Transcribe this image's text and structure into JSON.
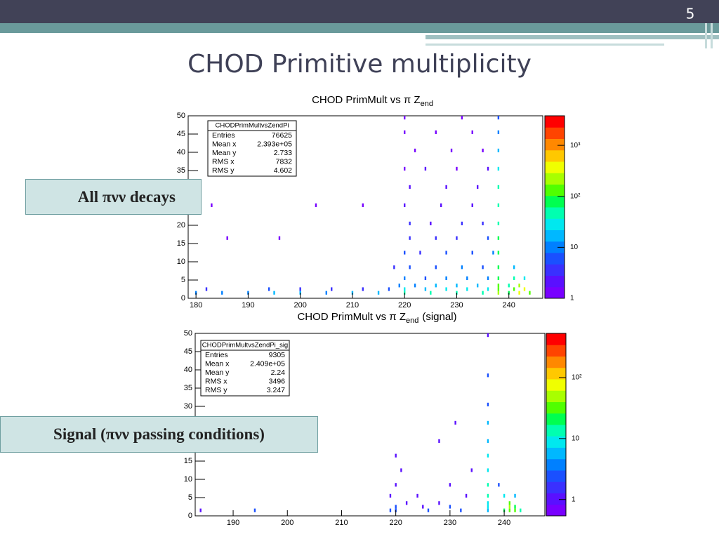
{
  "slide": {
    "number": "5",
    "title": "CHOD Primitive multiplicity"
  },
  "callouts": [
    "All πνν decays",
    "Signal (πνν passing conditions)"
  ],
  "chart_data": [
    {
      "type": "heatmap",
      "title": "CHOD PrimMult vs π Z",
      "title_subscript": "end",
      "xlim": [
        178.5,
        246.5
      ],
      "xticks": [
        180,
        190,
        200,
        210,
        220,
        230,
        240
      ],
      "ylim": [
        0,
        50
      ],
      "yticks": [
        0,
        5,
        10,
        15,
        20,
        25,
        30,
        35,
        40,
        45,
        50
      ],
      "zlim": [
        1,
        3800
      ],
      "zlog": true,
      "zticks": [
        1,
        10,
        {
          "value": 100,
          "label": "10²"
        },
        {
          "value": 1000,
          "label": "10³"
        }
      ],
      "stats": {
        "name": "CHODPrimMultvsZendPi",
        "rows": [
          {
            "label": "Entries",
            "value": 76625
          },
          {
            "label": "Mean x",
            "value": {
              "value": 239300,
              "label": "2.393e+05"
            }
          },
          {
            "label": "Mean y",
            "value": 2.733
          },
          {
            "label": "RMS x",
            "value": 7832
          },
          {
            "label": "RMS y",
            "value": 4.602
          }
        ]
      },
      "cells": [
        [
          180,
          1,
          8
        ],
        [
          185,
          1,
          10
        ],
        [
          190,
          1,
          12
        ],
        [
          195,
          1,
          15
        ],
        [
          200,
          1,
          14
        ],
        [
          205,
          1,
          12
        ],
        [
          210,
          1,
          15
        ],
        [
          215,
          1,
          20
        ],
        [
          220,
          1,
          60
        ],
        [
          225,
          1,
          40
        ],
        [
          230,
          1,
          45
        ],
        [
          235,
          1,
          50
        ],
        [
          238,
          1,
          200
        ],
        [
          240,
          1,
          80
        ],
        [
          242,
          1,
          300
        ],
        [
          244,
          1,
          150
        ],
        [
          182,
          2,
          3
        ],
        [
          194,
          2,
          5
        ],
        [
          200,
          2,
          4
        ],
        [
          206,
          2,
          3
        ],
        [
          212,
          2,
          4
        ],
        [
          217,
          2,
          6
        ],
        [
          220,
          2,
          30
        ],
        [
          224,
          2,
          20
        ],
        [
          228,
          2,
          25
        ],
        [
          232,
          2,
          22
        ],
        [
          236,
          2,
          30
        ],
        [
          238,
          2,
          150
        ],
        [
          241,
          2,
          120
        ],
        [
          243,
          2,
          400
        ],
        [
          219,
          3,
          10
        ],
        [
          222,
          3,
          12
        ],
        [
          226,
          3,
          15
        ],
        [
          230,
          3,
          14
        ],
        [
          234,
          3,
          18
        ],
        [
          238,
          3,
          120
        ],
        [
          240,
          3,
          60
        ],
        [
          242,
          3,
          200
        ],
        [
          220,
          5,
          8
        ],
        [
          224,
          5,
          6
        ],
        [
          228,
          5,
          10
        ],
        [
          232,
          5,
          9
        ],
        [
          236,
          5,
          12
        ],
        [
          238,
          5,
          100
        ],
        [
          241,
          5,
          40
        ],
        [
          243,
          5,
          30
        ],
        [
          218,
          8,
          3
        ],
        [
          221,
          8,
          6
        ],
        [
          226,
          8,
          7
        ],
        [
          231,
          8,
          8
        ],
        [
          235,
          8,
          7
        ],
        [
          238,
          8,
          90
        ],
        [
          241,
          8,
          20
        ],
        [
          220,
          12,
          5
        ],
        [
          223,
          12,
          4
        ],
        [
          228,
          12,
          6
        ],
        [
          233,
          12,
          5
        ],
        [
          237,
          12,
          8
        ],
        [
          238,
          12,
          80
        ],
        [
          186,
          16,
          1
        ],
        [
          196,
          16,
          1
        ],
        [
          221,
          16,
          4
        ],
        [
          226,
          16,
          3
        ],
        [
          230,
          16,
          4
        ],
        [
          236,
          16,
          5
        ],
        [
          238,
          16,
          70
        ],
        [
          221,
          20,
          3
        ],
        [
          225,
          20,
          2
        ],
        [
          231,
          20,
          3
        ],
        [
          235,
          20,
          3
        ],
        [
          238,
          20,
          60
        ],
        [
          183,
          25,
          1
        ],
        [
          203,
          25,
          1
        ],
        [
          212,
          25,
          1
        ],
        [
          220,
          25,
          2
        ],
        [
          227,
          25,
          2
        ],
        [
          233,
          25,
          2
        ],
        [
          238,
          25,
          50
        ],
        [
          221,
          30,
          2
        ],
        [
          228,
          30,
          2
        ],
        [
          234,
          30,
          2
        ],
        [
          238,
          30,
          40
        ],
        [
          220,
          35,
          1
        ],
        [
          224,
          35,
          2
        ],
        [
          230,
          35,
          1
        ],
        [
          236,
          35,
          2
        ],
        [
          238,
          35,
          30
        ],
        [
          222,
          40,
          1
        ],
        [
          229,
          40,
          1
        ],
        [
          235,
          40,
          1
        ],
        [
          238,
          40,
          20
        ],
        [
          220,
          45,
          1
        ],
        [
          226,
          45,
          1
        ],
        [
          233,
          45,
          1
        ],
        [
          238,
          45,
          10
        ],
        [
          220,
          49,
          1
        ],
        [
          231,
          49,
          1
        ],
        [
          238,
          49,
          5
        ]
      ]
    },
    {
      "type": "heatmap",
      "title": "CHOD PrimMult vs π Z",
      "title_subscript": "end",
      "title_suffix": "(signal)",
      "xlim": [
        183,
        247.5
      ],
      "xticks": [
        190,
        200,
        210,
        220,
        230,
        240
      ],
      "ylim": [
        0,
        50
      ],
      "yticks": [
        0,
        5,
        10,
        15,
        20,
        25,
        30,
        35,
        40,
        45,
        50
      ],
      "zlim": [
        0.54,
        530
      ],
      "zlog": true,
      "zticks": [
        1,
        10,
        {
          "value": 100,
          "label": "10²"
        }
      ],
      "stats": {
        "name": "CHODPrimMultvsZendPi_sig",
        "rows": [
          {
            "label": "Entries",
            "value": 9305
          },
          {
            "label": "Mean x",
            "value": {
              "value": 240900,
              "label": "2.409e+05"
            }
          },
          {
            "label": "Mean y",
            "value": 2.24
          },
          {
            "label": "RMS x",
            "value": 3496
          },
          {
            "label": "RMS y",
            "value": 3.247
          }
        ]
      },
      "cells": [
        [
          184,
          1,
          1
        ],
        [
          194,
          1,
          2
        ],
        [
          219,
          1,
          3
        ],
        [
          220,
          1,
          2
        ],
        [
          226,
          1,
          2
        ],
        [
          232,
          1,
          2
        ],
        [
          237,
          1,
          5
        ],
        [
          240,
          1,
          20
        ],
        [
          241,
          1,
          40
        ],
        [
          242,
          1,
          30
        ],
        [
          243,
          1,
          15
        ],
        [
          220,
          2,
          2
        ],
        [
          225,
          2,
          1
        ],
        [
          230,
          2,
          2
        ],
        [
          237,
          2,
          8
        ],
        [
          241,
          2,
          60
        ],
        [
          242,
          2,
          25
        ],
        [
          222,
          3,
          1
        ],
        [
          228,
          3,
          1
        ],
        [
          237,
          3,
          10
        ],
        [
          241,
          3,
          30
        ],
        [
          219,
          5,
          1
        ],
        [
          224,
          5,
          1
        ],
        [
          233,
          5,
          1
        ],
        [
          237,
          5,
          15
        ],
        [
          240,
          5,
          10
        ],
        [
          242,
          5,
          5
        ],
        [
          220,
          8,
          1
        ],
        [
          230,
          8,
          1
        ],
        [
          237,
          8,
          12
        ],
        [
          239,
          8,
          3
        ],
        [
          221,
          12,
          1
        ],
        [
          234,
          12,
          1
        ],
        [
          237,
          12,
          10
        ],
        [
          220,
          16,
          1
        ],
        [
          237,
          16,
          8
        ],
        [
          228,
          20,
          1
        ],
        [
          237,
          20,
          6
        ],
        [
          237,
          25,
          5
        ],
        [
          231,
          25,
          1
        ],
        [
          237,
          30,
          3
        ],
        [
          237,
          38,
          2
        ],
        [
          237,
          49,
          1
        ]
      ]
    }
  ]
}
